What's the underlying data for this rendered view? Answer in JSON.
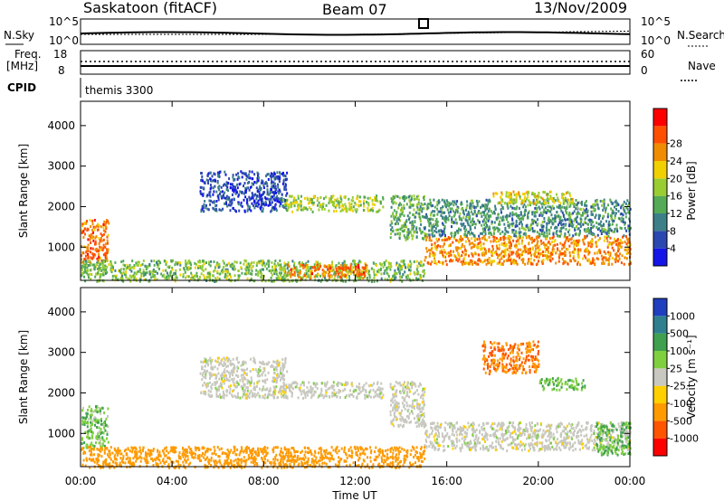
{
  "header": {
    "station": "Saskatoon (fitACF)",
    "beam": "Beam 07",
    "date": "13/Nov/2009"
  },
  "noise_panel": {
    "left_label": "N.Sky",
    "right_label": "N.Search",
    "left_ticks": [
      "10^5",
      "10^0"
    ],
    "right_ticks": [
      "10^5",
      "10^0"
    ]
  },
  "freq_panel": {
    "left_label_1": "Freq.",
    "left_label_2": "[MHz]",
    "right_label": "Nave",
    "left_ticks": [
      "18",
      "8"
    ],
    "right_ticks": [
      "60",
      "0"
    ]
  },
  "cpid_panel": {
    "label": "CPID",
    "program": "themis 3300"
  },
  "x_axis": {
    "label": "Time UT",
    "ticks": [
      "00:00",
      "04:00",
      "08:00",
      "12:00",
      "16:00",
      "20:00",
      "00:00"
    ]
  },
  "y_axis": {
    "label": "Slant Range [km]",
    "ticks": [
      "1000",
      "2000",
      "3000",
      "4000"
    ]
  },
  "power_scale": {
    "label": "Power [dB]",
    "ticks": [
      "4",
      "8",
      "12",
      "16",
      "20",
      "24",
      "28"
    ],
    "colors": [
      "#1515e8",
      "#2a48b0",
      "#3d7f88",
      "#55aa55",
      "#9acd32",
      "#f0d000",
      "#f08c00",
      "#ff5000",
      "#ff0000"
    ]
  },
  "velocity_scale": {
    "label": "Velocity [m s⁻¹]",
    "ticks": [
      "1000",
      "500",
      "100",
      "25",
      "-25",
      "-100",
      "-500",
      "-1000"
    ],
    "colors": [
      "#1f3fbf",
      "#2f7f8f",
      "#3fa04f",
      "#7fcf3f",
      "#c8c8c0",
      "#ffd000",
      "#ff9a00",
      "#ff5500",
      "#ff0000"
    ]
  },
  "chart_data": [
    {
      "type": "heatmap",
      "panel": "power",
      "title": "Power [dB]",
      "xlabel": "Time UT",
      "ylabel": "Slant Range [km]",
      "x_unit": "hours UT",
      "xlim": [
        0,
        24
      ],
      "ylim": [
        180,
        4600
      ],
      "regions": [
        {
          "x": [
            0.0,
            1.2
          ],
          "y": [
            650,
            1700
          ],
          "value": 28
        },
        {
          "x": [
            5.2,
            9.0
          ],
          "y": [
            1900,
            2900
          ],
          "value": 6
        },
        {
          "x": [
            8.8,
            13.2
          ],
          "y": [
            1900,
            2300
          ],
          "value": 18
        },
        {
          "x": [
            13.5,
            15.0
          ],
          "y": [
            1200,
            2300
          ],
          "value": 14
        },
        {
          "x": [
            15.0,
            24.0
          ],
          "y": [
            600,
            1300
          ],
          "value": 26
        },
        {
          "x": [
            15.0,
            24.0
          ],
          "y": [
            1300,
            2200
          ],
          "value": 12
        },
        {
          "x": [
            18.0,
            21.5
          ],
          "y": [
            2100,
            2400
          ],
          "value": 20
        },
        {
          "x": [
            0.0,
            15.0
          ],
          "y": [
            180,
            700
          ],
          "value": 16
        },
        {
          "x": [
            9.0,
            12.5
          ],
          "y": [
            250,
            600
          ],
          "value": 28
        }
      ]
    },
    {
      "type": "heatmap",
      "panel": "velocity",
      "title": "Velocity [m s⁻¹]",
      "xlabel": "Time UT",
      "ylabel": "Slant Range [km]",
      "x_unit": "hours UT",
      "xlim": [
        0,
        24
      ],
      "ylim": [
        180,
        4600
      ],
      "regions": [
        {
          "x": [
            0.0,
            1.2
          ],
          "y": [
            650,
            1700
          ],
          "value": 50
        },
        {
          "x": [
            5.2,
            9.0
          ],
          "y": [
            1900,
            2900
          ],
          "value": 0
        },
        {
          "x": [
            8.8,
            13.2
          ],
          "y": [
            1900,
            2300
          ],
          "value": 0
        },
        {
          "x": [
            13.5,
            15.0
          ],
          "y": [
            1200,
            2300
          ],
          "value": 0
        },
        {
          "x": [
            15.0,
            24.0
          ],
          "y": [
            600,
            1300
          ],
          "value": 0
        },
        {
          "x": [
            17.5,
            20.0
          ],
          "y": [
            2500,
            3300
          ],
          "value": -300
        },
        {
          "x": [
            20.0,
            22.0
          ],
          "y": [
            2100,
            2400
          ],
          "value": 60
        },
        {
          "x": [
            22.5,
            24.0
          ],
          "y": [
            500,
            1300
          ],
          "value": 60
        },
        {
          "x": [
            0.0,
            15.0
          ],
          "y": [
            180,
            700
          ],
          "value": -100
        }
      ]
    }
  ]
}
